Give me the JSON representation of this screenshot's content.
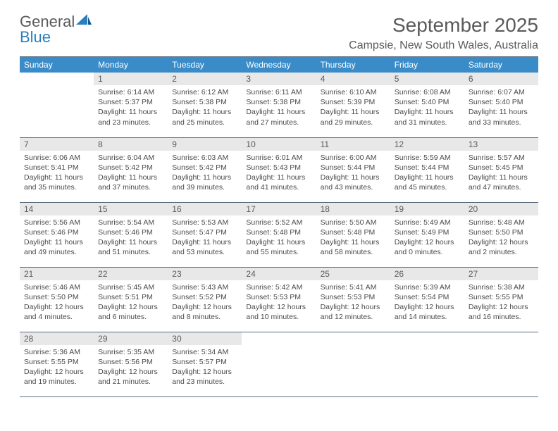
{
  "brand": {
    "name_a": "General",
    "name_b": "Blue"
  },
  "colors": {
    "header_bg": "#3a8cc9",
    "header_fg": "#ffffff",
    "daynum_bg": "#e8e8e8",
    "text": "#4a4a4a",
    "rule": "#5a6a7a"
  },
  "title": "September 2025",
  "location": "Campsie, New South Wales, Australia",
  "day_labels": [
    "Sunday",
    "Monday",
    "Tuesday",
    "Wednesday",
    "Thursday",
    "Friday",
    "Saturday"
  ],
  "weeks": [
    [
      {
        "n": "",
        "sr": "",
        "ss": "",
        "dl": ""
      },
      {
        "n": "1",
        "sr": "6:14 AM",
        "ss": "5:37 PM",
        "dl": "11 hours and 23 minutes."
      },
      {
        "n": "2",
        "sr": "6:12 AM",
        "ss": "5:38 PM",
        "dl": "11 hours and 25 minutes."
      },
      {
        "n": "3",
        "sr": "6:11 AM",
        "ss": "5:38 PM",
        "dl": "11 hours and 27 minutes."
      },
      {
        "n": "4",
        "sr": "6:10 AM",
        "ss": "5:39 PM",
        "dl": "11 hours and 29 minutes."
      },
      {
        "n": "5",
        "sr": "6:08 AM",
        "ss": "5:40 PM",
        "dl": "11 hours and 31 minutes."
      },
      {
        "n": "6",
        "sr": "6:07 AM",
        "ss": "5:40 PM",
        "dl": "11 hours and 33 minutes."
      }
    ],
    [
      {
        "n": "7",
        "sr": "6:06 AM",
        "ss": "5:41 PM",
        "dl": "11 hours and 35 minutes."
      },
      {
        "n": "8",
        "sr": "6:04 AM",
        "ss": "5:42 PM",
        "dl": "11 hours and 37 minutes."
      },
      {
        "n": "9",
        "sr": "6:03 AM",
        "ss": "5:42 PM",
        "dl": "11 hours and 39 minutes."
      },
      {
        "n": "10",
        "sr": "6:01 AM",
        "ss": "5:43 PM",
        "dl": "11 hours and 41 minutes."
      },
      {
        "n": "11",
        "sr": "6:00 AM",
        "ss": "5:44 PM",
        "dl": "11 hours and 43 minutes."
      },
      {
        "n": "12",
        "sr": "5:59 AM",
        "ss": "5:44 PM",
        "dl": "11 hours and 45 minutes."
      },
      {
        "n": "13",
        "sr": "5:57 AM",
        "ss": "5:45 PM",
        "dl": "11 hours and 47 minutes."
      }
    ],
    [
      {
        "n": "14",
        "sr": "5:56 AM",
        "ss": "5:46 PM",
        "dl": "11 hours and 49 minutes."
      },
      {
        "n": "15",
        "sr": "5:54 AM",
        "ss": "5:46 PM",
        "dl": "11 hours and 51 minutes."
      },
      {
        "n": "16",
        "sr": "5:53 AM",
        "ss": "5:47 PM",
        "dl": "11 hours and 53 minutes."
      },
      {
        "n": "17",
        "sr": "5:52 AM",
        "ss": "5:48 PM",
        "dl": "11 hours and 55 minutes."
      },
      {
        "n": "18",
        "sr": "5:50 AM",
        "ss": "5:48 PM",
        "dl": "11 hours and 58 minutes."
      },
      {
        "n": "19",
        "sr": "5:49 AM",
        "ss": "5:49 PM",
        "dl": "12 hours and 0 minutes."
      },
      {
        "n": "20",
        "sr": "5:48 AM",
        "ss": "5:50 PM",
        "dl": "12 hours and 2 minutes."
      }
    ],
    [
      {
        "n": "21",
        "sr": "5:46 AM",
        "ss": "5:50 PM",
        "dl": "12 hours and 4 minutes."
      },
      {
        "n": "22",
        "sr": "5:45 AM",
        "ss": "5:51 PM",
        "dl": "12 hours and 6 minutes."
      },
      {
        "n": "23",
        "sr": "5:43 AM",
        "ss": "5:52 PM",
        "dl": "12 hours and 8 minutes."
      },
      {
        "n": "24",
        "sr": "5:42 AM",
        "ss": "5:53 PM",
        "dl": "12 hours and 10 minutes."
      },
      {
        "n": "25",
        "sr": "5:41 AM",
        "ss": "5:53 PM",
        "dl": "12 hours and 12 minutes."
      },
      {
        "n": "26",
        "sr": "5:39 AM",
        "ss": "5:54 PM",
        "dl": "12 hours and 14 minutes."
      },
      {
        "n": "27",
        "sr": "5:38 AM",
        "ss": "5:55 PM",
        "dl": "12 hours and 16 minutes."
      }
    ],
    [
      {
        "n": "28",
        "sr": "5:36 AM",
        "ss": "5:55 PM",
        "dl": "12 hours and 19 minutes."
      },
      {
        "n": "29",
        "sr": "5:35 AM",
        "ss": "5:56 PM",
        "dl": "12 hours and 21 minutes."
      },
      {
        "n": "30",
        "sr": "5:34 AM",
        "ss": "5:57 PM",
        "dl": "12 hours and 23 minutes."
      },
      {
        "n": "",
        "sr": "",
        "ss": "",
        "dl": ""
      },
      {
        "n": "",
        "sr": "",
        "ss": "",
        "dl": ""
      },
      {
        "n": "",
        "sr": "",
        "ss": "",
        "dl": ""
      },
      {
        "n": "",
        "sr": "",
        "ss": "",
        "dl": ""
      }
    ]
  ],
  "labels": {
    "sunrise": "Sunrise:",
    "sunset": "Sunset:",
    "daylight": "Daylight:"
  }
}
